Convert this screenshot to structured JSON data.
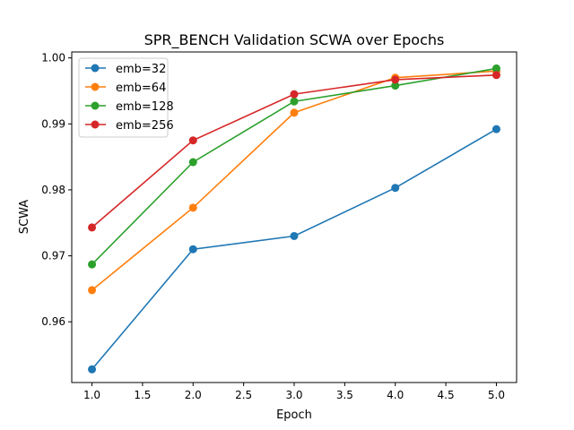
{
  "chart_data": {
    "type": "line",
    "title": "SPR_BENCH Validation SCWA over Epochs",
    "xlabel": "Epoch",
    "ylabel": "SCWA",
    "xlim": [
      0.8,
      5.2
    ],
    "ylim": [
      0.9508,
      1.0009
    ],
    "xticks": [
      1.0,
      1.5,
      2.0,
      2.5,
      3.0,
      3.5,
      4.0,
      4.5,
      5.0
    ],
    "xtick_labels": [
      "1.0",
      "1.5",
      "2.0",
      "2.5",
      "3.0",
      "3.5",
      "4.0",
      "4.5",
      "5.0"
    ],
    "yticks": [
      0.96,
      0.97,
      0.98,
      0.99,
      1.0
    ],
    "ytick_labels": [
      "0.96",
      "0.97",
      "0.98",
      "0.99",
      "1.00"
    ],
    "grid": false,
    "legend_position": "top-left",
    "x": [
      1,
      2,
      3,
      4,
      5
    ],
    "series": [
      {
        "name": "emb=32",
        "color": "#1f77b4",
        "values": [
          0.9528,
          0.971,
          0.973,
          0.9803,
          0.9892
        ]
      },
      {
        "name": "emb=64",
        "color": "#ff7f0e",
        "values": [
          0.9648,
          0.9773,
          0.9917,
          0.997,
          0.998
        ]
      },
      {
        "name": "emb=128",
        "color": "#2ca02c",
        "values": [
          0.9687,
          0.9842,
          0.9934,
          0.9958,
          0.9984
        ]
      },
      {
        "name": "emb=256",
        "color": "#d62728",
        "values": [
          0.9743,
          0.9875,
          0.9945,
          0.9967,
          0.9974
        ]
      }
    ]
  }
}
